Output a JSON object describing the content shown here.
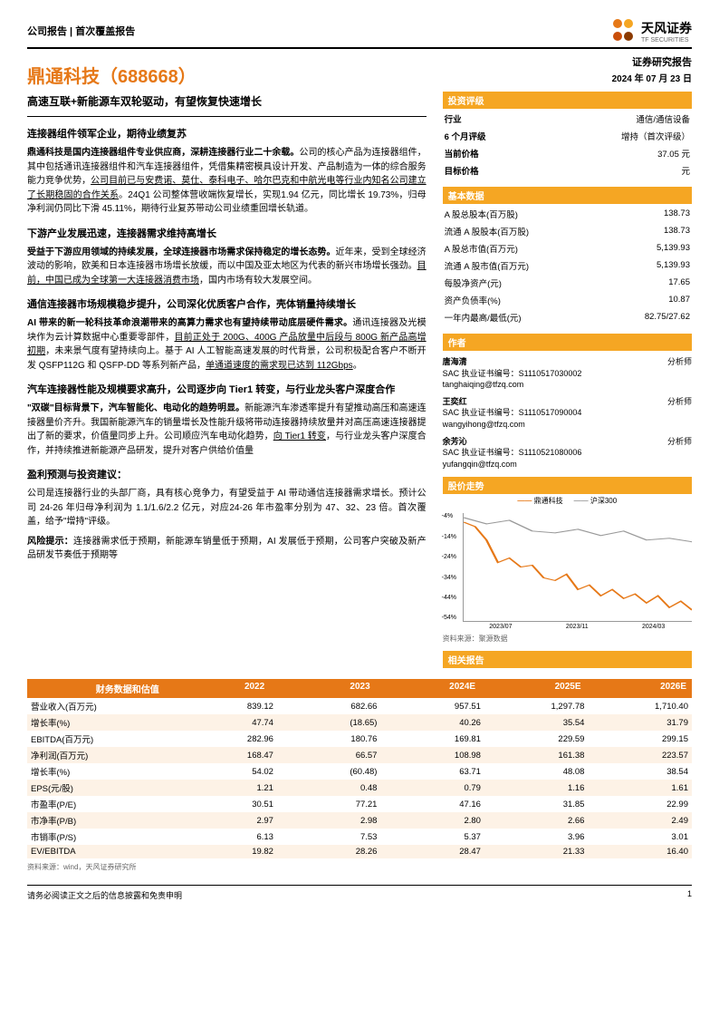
{
  "header": {
    "left": "公司报告 | 首次覆盖报告",
    "logo_text": "天风证券",
    "logo_sub": "TF SECURITIES",
    "logo_colors": [
      "#e67817",
      "#f5a623",
      "#c94f0a",
      "#8b3a00"
    ]
  },
  "title": "鼎通科技（688668）",
  "subtitle": "高速互联+新能源车双轮驱动，有望恢复快速增长",
  "sections": [
    {
      "head": "连接器组件领军企业，期待业绩复苏",
      "paras": [
        "<span class='bold'>鼎通科技是国内连接器组件专业供应商，深耕连接器行业二十余载。</span>公司的核心产品为连接器组件，其中包括通讯连接器组件和汽车连接器组件，凭借集精密模具设计开发、产品制造为一体的综合服务能力竞争优势，<span class='ul'>公司目前已与安费诺、莫仕、泰科电子、哈尔巴克和中航光电等行业内知名公司建立了长期稳固的合作关系</span>。24Q1 公司整体营收端恢复增长，实现1.94 亿元，同比增长 19.73%，归母净利润仍同比下滑 45.11%，期待行业复苏带动公司业绩重回增长轨道。"
      ]
    },
    {
      "head": "下游产业发展迅速，连接器需求维持高增长",
      "paras": [
        "<span class='bold'>受益于下游应用领域的持续发展，全球连接器市场需求保持稳定的增长态势。</span>近年来，受到全球经济波动的影响，欧美和日本连接器市场增长放缓，而以中国及亚太地区为代表的新兴市场增长强劲。<span class='ul'>目前，中国已成为全球第一大连接器消费市场</span>，国内市场有较大发展空间。"
      ]
    },
    {
      "head": "通信连接器市场规模稳步提升，公司深化优质客户合作，壳体销量持续增长",
      "paras": [
        "<span class='bold'>AI 带来的新一轮科技革命浪潮带来的高算力需求也有望持续带动底层硬件需求。</span>通讯连接器及光模块作为云计算数据中心重要零部件，<span class='ul'>目前正处于 200G、400G 产品放量中后段与 800G 新产品高增初期</span>，未来景气度有望持续向上。基于 AI 人工智能高速发展的时代背景，公司积极配合客户不断开发 QSFP112G 和 QSFP-DD 等系列新产品，<span class='ul'>单通道速度的需求现已达到 112Gbps</span>。"
      ]
    },
    {
      "head": "汽车连接器性能及规模要求高升，公司逐步向 Tier1 转变，与行业龙头客户深度合作",
      "paras": [
        "<span class='bold'>\"双碳\"目标背景下，汽车智能化、电动化的趋势明显。</span>新能源汽车渗透率提升有望推动高压和高速连接器量价齐升。我国新能源汽车的销量增长及性能升级将带动连接器持续放量并对高压高速连接器提出了新的要求，价值量同步上升。公司顺应汽车电动化趋势，<span class='ul'>向 Tier1 转变</span>，与行业龙头客户深度合作，并持续推进新能源产品研发，提升对客户供给价值量"
      ]
    },
    {
      "head": "盈利预测与投资建议：",
      "paras": [
        "公司是连接器行业的头部厂商，具有核心竞争力，有望受益于 AI 带动通信连接器需求增长。预计公司 24-26 年归母净利润为 1.1/1.6/2.2 亿元，对应24-26 年市盈率分别为 47、32、23 倍。首次覆盖，给予\"增持\"评级。",
        "<span class='bold'>风险提示：</span>连接器需求低于预期，新能源车销量低于预期，AI 发展低于预期，公司客户突破及新产品研发节奏低于预期等"
      ]
    }
  ],
  "sidebar": {
    "report_title": "证券研究报告",
    "date": "2024 年 07 月 23 日",
    "rating_block": {
      "title": "投资评级",
      "rows": [
        [
          "行业",
          "通信/通信设备"
        ],
        [
          "6 个月评级",
          "增持（首次评级）"
        ],
        [
          "当前价格",
          "37.05 元"
        ],
        [
          "目标价格",
          "元"
        ]
      ]
    },
    "basic_block": {
      "title": "基本数据",
      "rows": [
        [
          "A 股总股本(百万股)",
          "138.73"
        ],
        [
          "流通 A 股股本(百万股)",
          "138.73"
        ],
        [
          "A 股总市值(百万元)",
          "5,139.93"
        ],
        [
          "流通 A 股市值(百万元)",
          "5,139.93"
        ],
        [
          "每股净资产(元)",
          "17.65"
        ],
        [
          "资产负债率(%)",
          "10.87"
        ],
        [
          "一年内最高/最低(元)",
          "82.75/27.62"
        ]
      ]
    },
    "authors_title": "作者",
    "authors": [
      {
        "name": "唐海清",
        "role": "分析师",
        "sac": "SAC 执业证书编号：S1110517030002",
        "email": "tanghaiqing@tfzq.com"
      },
      {
        "name": "王奕红",
        "role": "分析师",
        "sac": "SAC 执业证书编号：S1110517090004",
        "email": "wangyihong@tfzq.com"
      },
      {
        "name": "余芳沁",
        "role": "分析师",
        "sac": "SAC 执业证书编号：S1110521080006",
        "email": "yufangqin@tfzq.com"
      }
    ],
    "chart_block": {
      "title": "股价走势",
      "legend": [
        "鼎通科技",
        "沪深300"
      ],
      "ylabels": [
        "-4%",
        "-14%",
        "-24%",
        "-34%",
        "-44%",
        "-54%"
      ],
      "xlabels": [
        "2023/07",
        "2023/11",
        "2024/03"
      ],
      "series1_color": "#e67817",
      "series2_color": "#999999",
      "series1": "0,10 5,15 10,30 15,55 20,50 25,60 30,58 35,72 40,75 45,68 50,85 55,80 60,92 65,85 70,95 75,90 80,100 85,92 90,105 95,98 100,108",
      "series2": "0,5 10,12 20,8 30,20 40,22 50,18 60,25 70,20 80,30 90,28 100,32",
      "src": "资料来源：聚源数据"
    },
    "related_title": "相关报告"
  },
  "fin": {
    "title": "财务数据和估值",
    "years": [
      "2022",
      "2023",
      "2024E",
      "2025E",
      "2026E"
    ],
    "rows": [
      [
        "营业收入(百万元)",
        "839.12",
        "682.66",
        "957.51",
        "1,297.78",
        "1,710.40"
      ],
      [
        "增长率(%)",
        "47.74",
        "(18.65)",
        "40.26",
        "35.54",
        "31.79"
      ],
      [
        "EBITDA(百万元)",
        "282.96",
        "180.76",
        "169.81",
        "229.59",
        "299.15"
      ],
      [
        "净利润(百万元)",
        "168.47",
        "66.57",
        "108.98",
        "161.38",
        "223.57"
      ],
      [
        "增长率(%)",
        "54.02",
        "(60.48)",
        "63.71",
        "48.08",
        "38.54"
      ],
      [
        "EPS(元/股)",
        "1.21",
        "0.48",
        "0.79",
        "1.16",
        "1.61"
      ],
      [
        "市盈率(P/E)",
        "30.51",
        "77.21",
        "47.16",
        "31.85",
        "22.99"
      ],
      [
        "市净率(P/B)",
        "2.97",
        "2.98",
        "2.80",
        "2.66",
        "2.49"
      ],
      [
        "市销率(P/S)",
        "6.13",
        "7.53",
        "5.37",
        "3.96",
        "3.01"
      ],
      [
        "EV/EBITDA",
        "19.82",
        "28.26",
        "28.47",
        "21.33",
        "16.40"
      ]
    ],
    "src": "资料来源：wind，天风证券研究所"
  },
  "footer": {
    "text": "请务必阅读正文之后的信息披露和免责申明",
    "page": "1"
  }
}
